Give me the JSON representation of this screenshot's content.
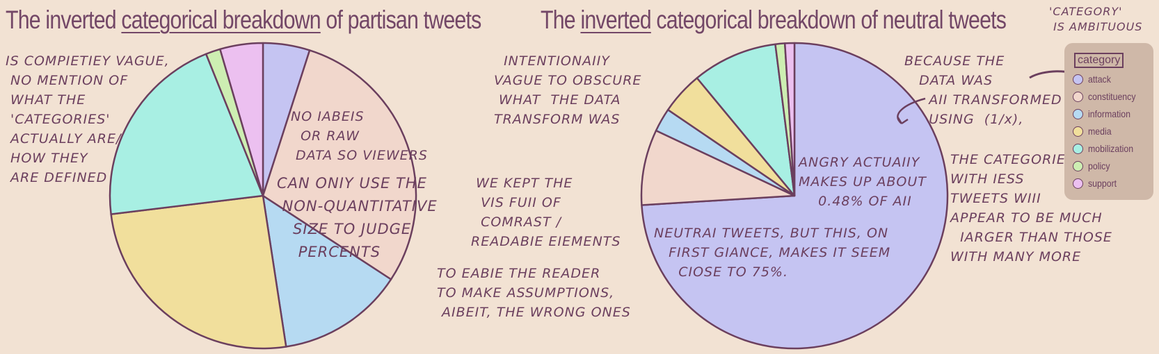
{
  "titles": {
    "left_pre": "The inverted ",
    "left_underlined": "categorical breakdown",
    "left_post": " of partisan tweets",
    "right_pre": "The ",
    "right_underlined": "inverted",
    "right_post": " categorical breakdown of neutral tweets"
  },
  "annotations": {
    "vague": "IS COMPIETIEY VAGUE,\n NO MENTION OF\n WHAT THE\n 'CATEGORIES'\n ACTUALLY ARE/\n HOW THEY\n ARE DEFINED",
    "no_labels": "NO IABEIS\n  OR RAW\n DATA SO VIEWERS",
    "non_quant": "CAN ONIY USE THE\n NON-QUANTITATIVE\n   SIZE TO JUDGE\n    PERCENTS",
    "intentional": "  INTENTIONAIIY\nVAGUE TO OBSCURE\n WHAT  THE DATA\nTRANSFORM WAS",
    "contrast": "  WE KEPT THE\n   VIS FUII OF\n   COMRAST /\n READABIE EIEMENTS",
    "enable": "TO EABIE THE READER\nTO MAKE ASSUMPTIONS,\n AIBEIT, THE WRONG ONES",
    "because": "BECAUSE THE\n   DATA WAS\n     AII TRANSFORMED\n     USING  (1/x),",
    "angry": "ANGRY ACTUAIIY\nMAKES UP ABOUT\n    0.48% OF AII",
    "neutral_first": "NEUTRAI TWEETS, BUT THIS, ON\n   FIRST GIANCE, MAKES IT SEEM\n     CIOSE TO 75%.",
    "categories_less": "THE CATEGORIES\nWITH IESS\nTWEETS WIII\nAPPEAR TO BE MUCH\n  IARGER THAN THOSE\nWITH MANY MORE",
    "category_ambitious": "'CATEGORY'\n IS AMBITUOUS"
  },
  "legend": {
    "title": "category",
    "items": [
      "attack",
      "constituency",
      "information",
      "media",
      "mobilization",
      "policy",
      "support"
    ]
  },
  "colors": {
    "attack": "#c5c4f2",
    "constituency": "#f1d7cc",
    "information": "#b6daf2",
    "media": "#f1df9c",
    "mobilization": "#a8efe3",
    "policy": "#cdeeb2",
    "support": "#ecc0f0",
    "stroke": "#6b3f5e"
  },
  "chart_data": [
    {
      "type": "pie",
      "title": "The inverted categorical breakdown of partisan tweets",
      "categories": [
        "attack",
        "constituency",
        "information",
        "media",
        "mobilization",
        "policy",
        "support"
      ],
      "values": [
        4.8,
        28.5,
        13.0,
        24.8,
        20.3,
        1.5,
        4.4
      ]
    },
    {
      "type": "pie",
      "title": "The inverted categorical breakdown of neutral tweets",
      "categories": [
        "attack",
        "constituency",
        "information",
        "media",
        "mobilization",
        "policy",
        "support"
      ],
      "values": [
        74.1,
        8.0,
        2.5,
        4.5,
        9.0,
        1.0,
        1.0
      ]
    }
  ]
}
